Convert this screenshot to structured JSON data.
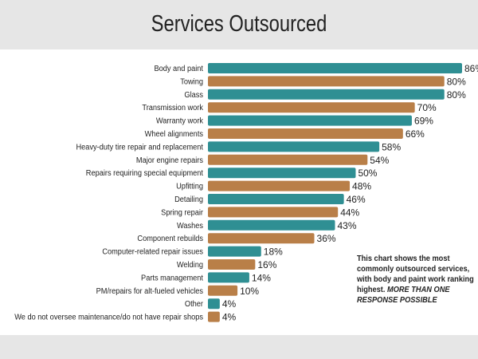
{
  "chart_data": {
    "type": "bar",
    "orientation": "horizontal",
    "title": "Services Outsourced",
    "categories": [
      "Body and paint",
      "Towing",
      "Glass",
      "Transmission work",
      "Warranty work",
      "Wheel alignments",
      "Heavy-duty tire repair and replacement",
      "Major engine repairs",
      "Repairs requiring special equipment",
      "Upfitting",
      "Detailing",
      "Spring repair",
      "Washes",
      "Component rebuilds",
      "Computer-related repair issues",
      "Welding",
      "Parts management",
      "PM/repairs for alt-fueled vehicles",
      "Other",
      "We do not oversee maintenance/do not have repair shops"
    ],
    "values": [
      86,
      80,
      80,
      70,
      69,
      66,
      58,
      54,
      50,
      48,
      46,
      44,
      43,
      36,
      18,
      16,
      14,
      10,
      4,
      4
    ],
    "value_suffix": "%",
    "colors": [
      "#2f8f93",
      "#b97f48"
    ],
    "xlim": [
      0,
      86
    ],
    "grid": false,
    "note": "This chart shows the most commonly outsourced services, with body and paint work ranking highest.",
    "note_emphasis": "MORE THAN ONE RESPONSE POSSIBLE"
  }
}
